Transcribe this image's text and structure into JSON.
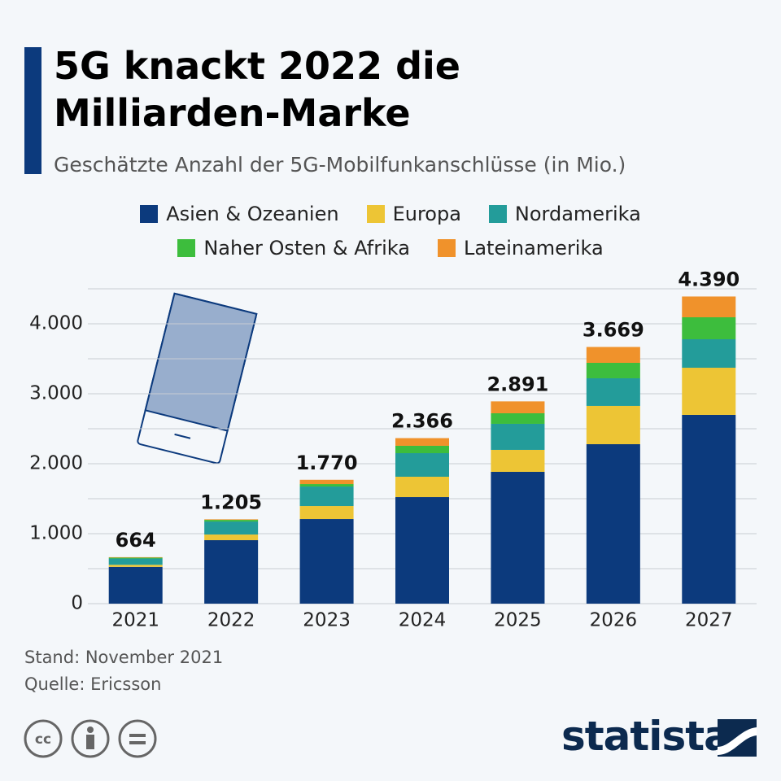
{
  "chart_data": {
    "type": "stacked_bar",
    "title": [
      "5G knackt 2022 die",
      "Milliarden-Marke"
    ],
    "subtitle": "Geschätzte Anzahl der 5G-Mobilfunkanschlüsse (in Mio.)",
    "categories": [
      "2021",
      "2022",
      "2023",
      "2024",
      "2025",
      "2026",
      "2027"
    ],
    "series": [
      {
        "name": "Asien & Ozeanien",
        "color": "#0c3a7d",
        "values": [
          525,
          907,
          1209,
          1523,
          1884,
          2279,
          2698
        ]
      },
      {
        "name": "Europa",
        "color": "#edc535",
        "values": [
          30,
          81,
          186,
          291,
          314,
          547,
          674
        ]
      },
      {
        "name": "Nordamerika",
        "color": "#239c9a",
        "values": [
          90,
          186,
          279,
          337,
          372,
          395,
          407
        ]
      },
      {
        "name": "Naher Osten & Afrika",
        "color": "#3dbd3d",
        "values": [
          12,
          23,
          35,
          105,
          151,
          221,
          314
        ]
      },
      {
        "name": "Lateinamerika",
        "color": "#f0922b",
        "values": [
          7,
          8,
          61,
          110,
          170,
          227,
          297
        ]
      }
    ],
    "totals": {
      "values": [
        664,
        1205,
        1770,
        2366,
        2891,
        3669,
        4390
      ],
      "value_labels": [
        "664",
        "1.205",
        "1.770",
        "2.366",
        "2.891",
        "3.669",
        "4.390"
      ]
    },
    "ylim": [
      0,
      4500
    ],
    "yticks": [
      0,
      {
        "value": 1000,
        "label": "1.000"
      },
      {
        "value": 2000,
        "label": "2.000"
      },
      {
        "value": 3000,
        "label": "3.000"
      },
      {
        "value": 4000,
        "label": "4.000"
      }
    ],
    "ygrid": [
      500,
      1500,
      2500,
      3500,
      4500
    ],
    "grid": true,
    "notes": [
      "Stand: November 2021",
      "Quelle: Ericsson"
    ],
    "brand": "statista"
  }
}
